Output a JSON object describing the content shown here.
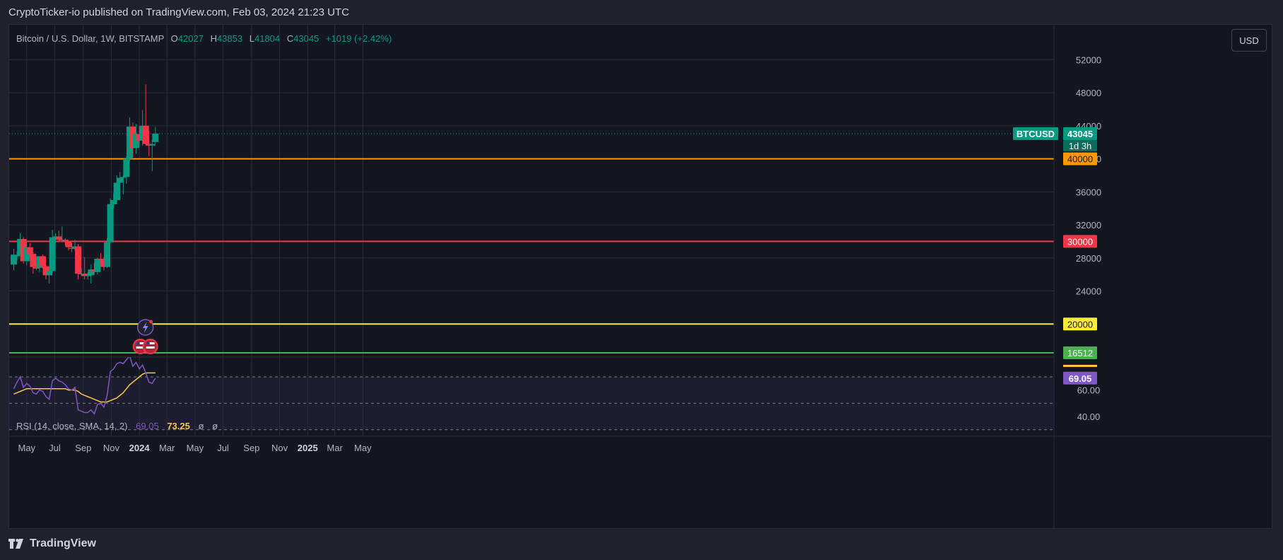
{
  "header": {
    "published": "CryptoTicker-io published on TradingView.com, Feb 03, 2024 21:23 UTC"
  },
  "footer": {
    "brand": "TradingView"
  },
  "legend": {
    "symbol": "Bitcoin / U.S. Dollar, 1W, BITSTAMP",
    "o_label": "O",
    "o": "42027",
    "h_label": "H",
    "h": "43853",
    "l_label": "L",
    "l": "41804",
    "c_label": "C",
    "c": "43045",
    "change": "+1019 (+2.42%)"
  },
  "currency_button": "USD",
  "rsi_legend": {
    "name": "RSI (14, close, SMA, 14, 2)",
    "rsi": "69.05",
    "sma": "73.25",
    "na1": "ø",
    "na2": "ø"
  },
  "colors": {
    "up": "#089981",
    "down": "#f23645",
    "background": "#131722",
    "grid": "#2a2e39",
    "rsi": "#7e57c2",
    "rsi_ma": "#f7c948"
  },
  "chart_data": {
    "type": "candlestick",
    "symbol": "BTCUSD",
    "interval": "1W",
    "exchange": "BITSTAMP",
    "price_axis": {
      "range": [
        16000,
        54000
      ],
      "ticks": [
        52000,
        48000,
        44000,
        40000,
        36000,
        32000,
        28000,
        24000
      ]
    },
    "time_axis": {
      "labels": [
        {
          "label": "May",
          "date": "2023-05-01"
        },
        {
          "label": "Jul",
          "date": "2023-07-01"
        },
        {
          "label": "Sep",
          "date": "2023-09-01"
        },
        {
          "label": "Nov",
          "date": "2023-11-01"
        },
        {
          "label": "2024",
          "date": "2024-01-01",
          "bold": true
        },
        {
          "label": "Mar",
          "date": "2024-03-01"
        },
        {
          "label": "May",
          "date": "2024-05-01"
        },
        {
          "label": "Jul",
          "date": "2024-07-01"
        },
        {
          "label": "Sep",
          "date": "2024-09-01"
        },
        {
          "label": "Nov",
          "date": "2024-11-01"
        },
        {
          "label": "2025",
          "date": "2025-01-01",
          "bold": true
        },
        {
          "label": "Mar",
          "date": "2025-03-01"
        },
        {
          "label": "May",
          "date": "2025-05-01"
        }
      ]
    },
    "candles": [
      {
        "date": "2023-03-27",
        "o": 27200,
        "h": 29100,
        "l": 26500,
        "c": 28400
      },
      {
        "date": "2023-04-03",
        "o": 28200,
        "h": 28800,
        "l": 27700,
        "c": 28300
      },
      {
        "date": "2023-04-10",
        "o": 28300,
        "h": 31000,
        "l": 28200,
        "c": 30300
      },
      {
        "date": "2023-04-17",
        "o": 30300,
        "h": 30500,
        "l": 27300,
        "c": 27600
      },
      {
        "date": "2023-04-24",
        "o": 27600,
        "h": 30000,
        "l": 27100,
        "c": 29300
      },
      {
        "date": "2023-05-01",
        "o": 29300,
        "h": 29800,
        "l": 28100,
        "c": 28500
      },
      {
        "date": "2023-05-08",
        "o": 28500,
        "h": 28700,
        "l": 26100,
        "c": 26900
      },
      {
        "date": "2023-05-15",
        "o": 26900,
        "h": 27500,
        "l": 26500,
        "c": 26700
      },
      {
        "date": "2023-05-22",
        "o": 26800,
        "h": 28200,
        "l": 26300,
        "c": 28200
      },
      {
        "date": "2023-05-29",
        "o": 28200,
        "h": 28400,
        "l": 26700,
        "c": 27000
      },
      {
        "date": "2023-06-05",
        "o": 27000,
        "h": 27100,
        "l": 25400,
        "c": 25900
      },
      {
        "date": "2023-06-12",
        "o": 25900,
        "h": 26800,
        "l": 24900,
        "c": 26400
      },
      {
        "date": "2023-06-19",
        "o": 26400,
        "h": 31400,
        "l": 26200,
        "c": 30500
      },
      {
        "date": "2023-06-26",
        "o": 30500,
        "h": 31000,
        "l": 29800,
        "c": 30600
      },
      {
        "date": "2023-07-03",
        "o": 30600,
        "h": 31300,
        "l": 29900,
        "c": 30200
      },
      {
        "date": "2023-07-10",
        "o": 30200,
        "h": 31800,
        "l": 29900,
        "c": 30200
      },
      {
        "date": "2023-07-17",
        "o": 30200,
        "h": 30400,
        "l": 29500,
        "c": 30000
      },
      {
        "date": "2023-07-24",
        "o": 30000,
        "h": 30100,
        "l": 28900,
        "c": 29300
      },
      {
        "date": "2023-07-31",
        "o": 29200,
        "h": 29800,
        "l": 28700,
        "c": 29100
      },
      {
        "date": "2023-08-07",
        "o": 29100,
        "h": 30200,
        "l": 28900,
        "c": 29400
      },
      {
        "date": "2023-08-14",
        "o": 29400,
        "h": 29700,
        "l": 25400,
        "c": 26100
      },
      {
        "date": "2023-08-21",
        "o": 26100,
        "h": 26800,
        "l": 25800,
        "c": 26100
      },
      {
        "date": "2023-08-28",
        "o": 26100,
        "h": 28100,
        "l": 25400,
        "c": 25800
      },
      {
        "date": "2023-09-04",
        "o": 25800,
        "h": 26200,
        "l": 25400,
        "c": 25900
      },
      {
        "date": "2023-09-11",
        "o": 25900,
        "h": 27200,
        "l": 24900,
        "c": 26600
      },
      {
        "date": "2023-09-18",
        "o": 26600,
        "h": 27400,
        "l": 26000,
        "c": 26300
      },
      {
        "date": "2023-09-25",
        "o": 26300,
        "h": 28000,
        "l": 26000,
        "c": 27900
      },
      {
        "date": "2023-10-02",
        "o": 27900,
        "h": 28600,
        "l": 27200,
        "c": 27800
      },
      {
        "date": "2023-10-09",
        "o": 27800,
        "h": 28100,
        "l": 26500,
        "c": 26900
      },
      {
        "date": "2023-10-16",
        "o": 26900,
        "h": 30400,
        "l": 26800,
        "c": 29900
      },
      {
        "date": "2023-10-23",
        "o": 29900,
        "h": 35200,
        "l": 29800,
        "c": 34500
      },
      {
        "date": "2023-10-30",
        "o": 34500,
        "h": 35900,
        "l": 34000,
        "c": 35000
      },
      {
        "date": "2023-11-06",
        "o": 35000,
        "h": 38000,
        "l": 34500,
        "c": 37100
      },
      {
        "date": "2023-11-13",
        "o": 37100,
        "h": 38400,
        "l": 35000,
        "c": 37700
      },
      {
        "date": "2023-11-20",
        "o": 37700,
        "h": 38000,
        "l": 35700,
        "c": 37800
      },
      {
        "date": "2023-11-27",
        "o": 37800,
        "h": 40300,
        "l": 37000,
        "c": 40000
      },
      {
        "date": "2023-12-04",
        "o": 40000,
        "h": 45000,
        "l": 39700,
        "c": 43900
      },
      {
        "date": "2023-12-11",
        "o": 43900,
        "h": 44400,
        "l": 40200,
        "c": 41300
      },
      {
        "date": "2023-12-18",
        "o": 41300,
        "h": 44200,
        "l": 40600,
        "c": 43000
      },
      {
        "date": "2023-12-25",
        "o": 43000,
        "h": 43900,
        "l": 41800,
        "c": 42200
      },
      {
        "date": "2024-01-01",
        "o": 42200,
        "h": 45900,
        "l": 41600,
        "c": 44000
      },
      {
        "date": "2024-01-08",
        "o": 44000,
        "h": 49000,
        "l": 41700,
        "c": 41800
      },
      {
        "date": "2024-01-15",
        "o": 41800,
        "h": 43400,
        "l": 40300,
        "c": 41600
      },
      {
        "date": "2024-01-22",
        "o": 41600,
        "h": 42300,
        "l": 38500,
        "c": 41800
      },
      {
        "date": "2024-01-29",
        "o": 42027,
        "h": 43853,
        "l": 41804,
        "c": 43045
      }
    ],
    "horizontal_lines": [
      {
        "price": 40000,
        "label": "40000",
        "color": "#ff9800"
      },
      {
        "price": 30000,
        "label": "30000",
        "color": "#f23645"
      },
      {
        "price": 20000,
        "label": "20000",
        "color": "#ffeb3b"
      },
      {
        "price": 16512,
        "label": "16512",
        "color": "#4caf50"
      }
    ],
    "last_price": {
      "symbol": "BTCUSD",
      "price": 43045,
      "label": "43045",
      "countdown": "1d 3h",
      "color": "#089981"
    },
    "rsi": {
      "params": "RSI (14, close, SMA, 14, 2)",
      "range": [
        25,
        85
      ],
      "ticks": [
        60,
        40
      ],
      "ticks_labels": [
        "60.00",
        "40.00"
      ],
      "bands": [
        70,
        50,
        30
      ],
      "current": "69.05",
      "current_sma": "73.25",
      "values": [
        61,
        66,
        70,
        62,
        65,
        63,
        58,
        57,
        60,
        59,
        55,
        53,
        67,
        69,
        67,
        66,
        64,
        61,
        60,
        62,
        45,
        44,
        43,
        43,
        45,
        42,
        49,
        50,
        47,
        56,
        74,
        76,
        80,
        81,
        80,
        83,
        86,
        78,
        81,
        76,
        79,
        73,
        66,
        65,
        69
      ],
      "sma": [
        57,
        58,
        59,
        60,
        61,
        61,
        61,
        61,
        61,
        61,
        61,
        61,
        61,
        61,
        61,
        61,
        61,
        60,
        60,
        60,
        59,
        57,
        56,
        55,
        54,
        53,
        52,
        51,
        51,
        51,
        52,
        53,
        54,
        56,
        58,
        61,
        64,
        66,
        68,
        70,
        72,
        73,
        73,
        73,
        73
      ]
    }
  }
}
